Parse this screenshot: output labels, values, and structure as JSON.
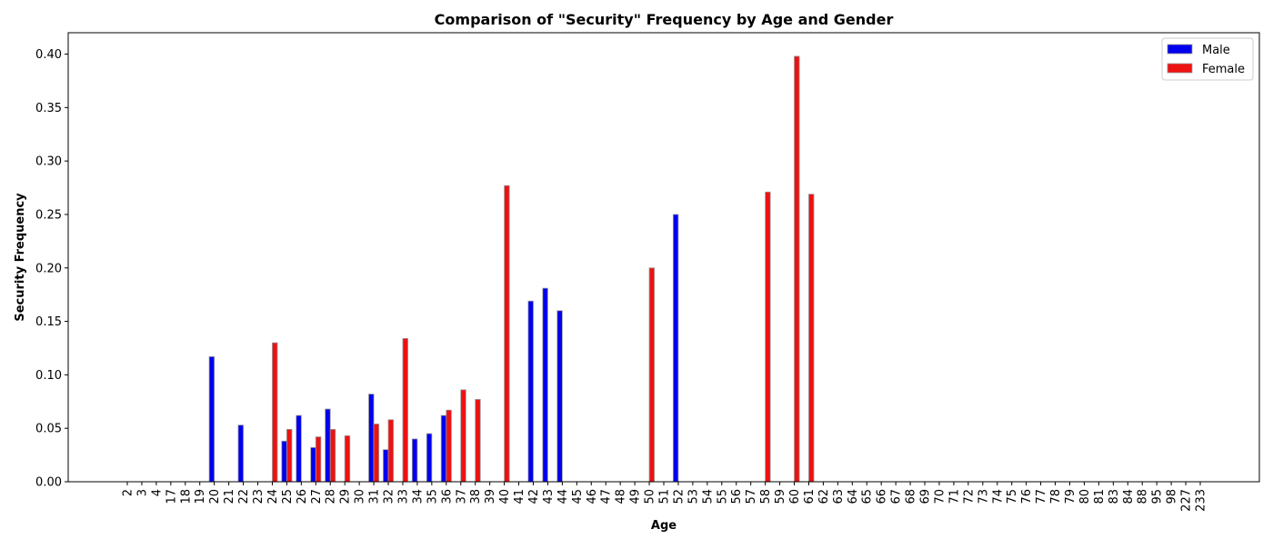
{
  "chart_data": {
    "type": "bar",
    "title": "Comparison of \"Security\" Frequency by Age and Gender",
    "xlabel": "Age",
    "ylabel": "Security Frequency",
    "ylim": [
      0,
      0.42
    ],
    "yticks": [
      "0.00",
      "0.05",
      "0.10",
      "0.15",
      "0.20",
      "0.25",
      "0.30",
      "0.35",
      "0.40"
    ],
    "grid": false,
    "legend_position": "top-right",
    "categories": [
      "2",
      "3",
      "4",
      "17",
      "18",
      "19",
      "20",
      "21",
      "22",
      "23",
      "24",
      "25",
      "26",
      "27",
      "28",
      "29",
      "30",
      "31",
      "32",
      "33",
      "34",
      "35",
      "36",
      "37",
      "38",
      "39",
      "40",
      "41",
      "42",
      "43",
      "44",
      "45",
      "46",
      "47",
      "48",
      "49",
      "50",
      "51",
      "52",
      "53",
      "54",
      "55",
      "56",
      "57",
      "58",
      "59",
      "60",
      "61",
      "62",
      "63",
      "64",
      "65",
      "66",
      "67",
      "68",
      "69",
      "70",
      "71",
      "72",
      "73",
      "74",
      "75",
      "76",
      "77",
      "78",
      "79",
      "80",
      "81",
      "83",
      "84",
      "88",
      "95",
      "98",
      "227",
      "233"
    ],
    "series": [
      {
        "name": "Male",
        "color": "#0000ee",
        "values": [
          0,
          0,
          0,
          0,
          0,
          0,
          0.117,
          0,
          0.053,
          0,
          0,
          0.038,
          0.062,
          0.032,
          0.068,
          0,
          0,
          0.082,
          0.03,
          0,
          0.04,
          0.045,
          0.062,
          0,
          0,
          0,
          0,
          0,
          0.169,
          0.181,
          0.16,
          0,
          0,
          0,
          0,
          0,
          0,
          0,
          0.25,
          0,
          0,
          0,
          0,
          0,
          0,
          0,
          0,
          0,
          0,
          0,
          0,
          0,
          0,
          0,
          0,
          0,
          0,
          0,
          0,
          0,
          0,
          0,
          0,
          0,
          0,
          0,
          0,
          0,
          0,
          0,
          0,
          0,
          0,
          0,
          0
        ]
      },
      {
        "name": "Female",
        "color": "#ee1111",
        "values": [
          0,
          0,
          0,
          0,
          0,
          0,
          0,
          0,
          0,
          0,
          0.13,
          0.049,
          0,
          0.042,
          0.049,
          0.043,
          0,
          0.054,
          0.058,
          0.134,
          0,
          0,
          0.067,
          0.086,
          0.077,
          0,
          0.277,
          0,
          0,
          0,
          0,
          0,
          0,
          0,
          0,
          0,
          0.2,
          0,
          0,
          0,
          0,
          0,
          0,
          0,
          0.271,
          0,
          0.398,
          0.269,
          0,
          0,
          0,
          0,
          0,
          0,
          0,
          0,
          0,
          0,
          0,
          0,
          0,
          0,
          0,
          0,
          0,
          0,
          0,
          0,
          0,
          0,
          0,
          0,
          0,
          0,
          0
        ]
      }
    ]
  }
}
